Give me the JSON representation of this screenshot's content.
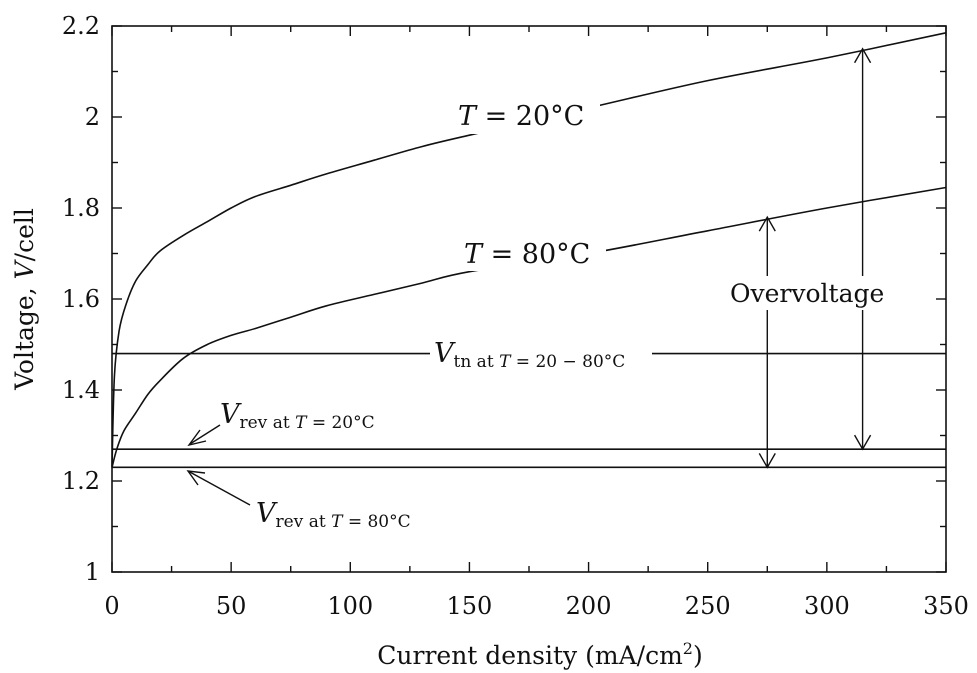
{
  "chart_data": {
    "type": "line",
    "xlabel_main": "Current density (mA/cm",
    "xlabel_sup": "2",
    "xlabel_tail": ")",
    "ylabel_main": "Voltage, ",
    "ylabel_var": "V",
    "ylabel_tail": "/cell",
    "xlim": [
      0,
      350
    ],
    "ylim": [
      1,
      2.2
    ],
    "xticks": [
      0,
      50,
      100,
      150,
      200,
      250,
      300,
      350
    ],
    "yticks": [
      1,
      1.2,
      1.4,
      1.6,
      1.8,
      2,
      2.2
    ],
    "xtick_labels": [
      "0",
      "50",
      "100",
      "150",
      "200",
      "250",
      "300",
      "350"
    ],
    "ytick_labels": [
      "1",
      "1.2",
      "1.4",
      "1.6",
      "1.8",
      "2",
      "2.2"
    ],
    "grid": false,
    "series": [
      {
        "name": "T = 20°C",
        "x": [
          0,
          1,
          3,
          6,
          10,
          15,
          20,
          30,
          40,
          50,
          60,
          75,
          90,
          110,
          130,
          150,
          200,
          250,
          300,
          350
        ],
        "y": [
          1.23,
          1.43,
          1.53,
          1.59,
          1.64,
          1.675,
          1.705,
          1.74,
          1.77,
          1.8,
          1.825,
          1.85,
          1.875,
          1.905,
          1.935,
          1.96,
          2.02,
          2.08,
          2.13,
          2.185
        ]
      },
      {
        "name": "T = 80°C",
        "x": [
          0,
          2,
          5,
          10,
          15,
          20,
          30,
          40,
          50,
          60,
          75,
          90,
          110,
          130,
          150,
          200,
          250,
          300,
          350
        ],
        "y": [
          1.23,
          1.27,
          1.31,
          1.35,
          1.39,
          1.42,
          1.47,
          1.5,
          1.52,
          1.535,
          1.56,
          1.585,
          1.61,
          1.635,
          1.66,
          1.7,
          1.75,
          1.8,
          1.845
        ]
      }
    ],
    "reference_lines": [
      {
        "name": "V_tn",
        "y": 1.48
      },
      {
        "name": "V_rev_20",
        "y": 1.27
      },
      {
        "name": "V_rev_80",
        "y": 1.23
      }
    ],
    "overvoltage_arrows": [
      {
        "x": 275,
        "y_from": 1.23,
        "y_to": 1.78
      },
      {
        "x": 315,
        "y_from": 1.27,
        "y_to": 2.15
      }
    ],
    "annotations": {
      "t20": {
        "var": "T",
        "text": " = 20°C"
      },
      "t80": {
        "var": "T",
        "text": " = 80°C"
      },
      "vtn": {
        "var": "V",
        "sub_a": "tn at ",
        "sub_var": "T",
        "sub_b": " = 20 − 80°C"
      },
      "vrev20": {
        "var": "V",
        "sub_a": "rev at ",
        "sub_var": "T",
        "sub_b": " = 20°C"
      },
      "vrev80": {
        "var": "V",
        "sub_a": "rev at ",
        "sub_var": "T",
        "sub_b": " = 80°C"
      },
      "overvoltage": "Overvoltage"
    }
  }
}
